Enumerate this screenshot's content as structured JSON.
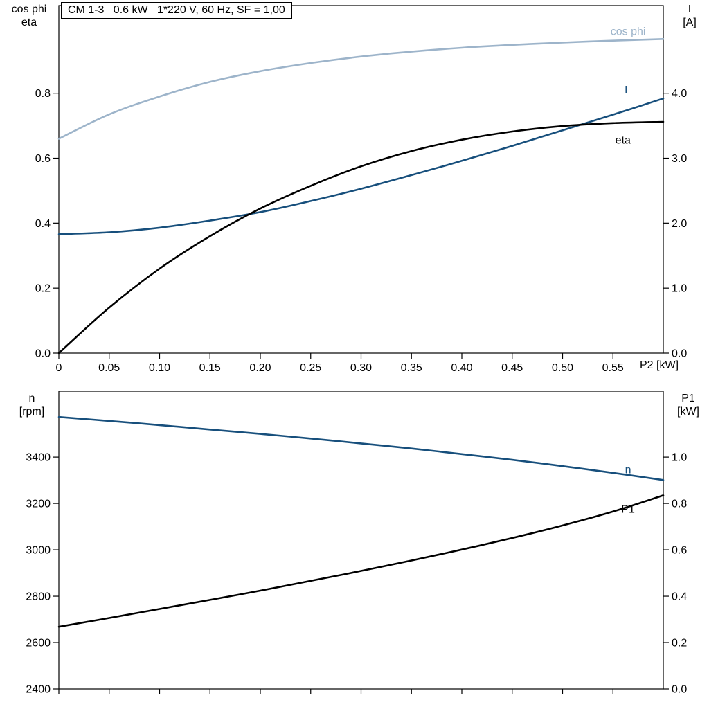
{
  "page": {
    "background": "#ffffff"
  },
  "header": {
    "title": "CM 1-3   0.6 kW   1*220 V, 60 Hz, SF = 1,00"
  },
  "chart_data": [
    {
      "type": "line",
      "title": "CM 1-3   0.6 kW   1*220 V, 60 Hz, SF = 1,00",
      "x_label": "P2 [kW]",
      "x_range": [
        0,
        0.6
      ],
      "x": [
        0,
        0.05,
        0.1,
        0.15,
        0.2,
        0.25,
        0.3,
        0.35,
        0.4,
        0.45,
        0.5,
        0.55,
        0.6
      ],
      "x_ticks": {
        "values": [
          0,
          0.05,
          0.1,
          0.15,
          0.2,
          0.25,
          0.3,
          0.35,
          0.4,
          0.45,
          0.5,
          0.55
        ],
        "labels": [
          "0",
          "0.05",
          "0.10",
          "0.15",
          "0.20",
          "0.25",
          "0.30",
          "0.35",
          "0.40",
          "0.45",
          "0.50",
          "0.55"
        ]
      },
      "left_axis": {
        "label_lines": [
          "cos phi",
          "eta"
        ],
        "range": [
          0,
          1.07
        ],
        "ticks": {
          "values": [
            0,
            0.2,
            0.4,
            0.6,
            0.8
          ],
          "labels": [
            "0.0",
            "0.2",
            "0.4",
            "0.6",
            "0.8"
          ]
        }
      },
      "right_axis": {
        "label_lines": [
          "I",
          "[A]"
        ],
        "range": [
          0,
          5.35
        ],
        "ticks": {
          "values": [
            0,
            1,
            2,
            3,
            4
          ],
          "labels": [
            "0.0",
            "1.0",
            "2.0",
            "3.0",
            "4.0"
          ]
        }
      },
      "series": [
        {
          "name": "cos phi",
          "axis": "left",
          "color": "#9db4ca",
          "label_at": [
            0.565,
            0.99
          ],
          "values": [
            0.66,
            0.735,
            0.79,
            0.835,
            0.868,
            0.893,
            0.913,
            0.928,
            0.94,
            0.949,
            0.956,
            0.962,
            0.967
          ]
        },
        {
          "name": "I",
          "axis": "right",
          "color": "#174f7c",
          "label_at": [
            0.563,
            4.05
          ],
          "values": [
            1.83,
            1.86,
            1.93,
            2.04,
            2.17,
            2.34,
            2.53,
            2.74,
            2.96,
            3.19,
            3.43,
            3.67,
            3.92
          ]
        },
        {
          "name": "eta",
          "axis": "left",
          "color": "#000000",
          "label_at": [
            0.56,
            0.655
          ],
          "values": [
            0,
            0.14,
            0.26,
            0.36,
            0.445,
            0.515,
            0.575,
            0.622,
            0.657,
            0.682,
            0.699,
            0.708,
            0.712
          ]
        }
      ]
    },
    {
      "type": "line",
      "title": "",
      "x_label": "",
      "x_range": [
        0,
        0.6
      ],
      "x": [
        0,
        0.05,
        0.1,
        0.15,
        0.2,
        0.25,
        0.3,
        0.35,
        0.4,
        0.45,
        0.5,
        0.55,
        0.6
      ],
      "x_ticks": {
        "values": [
          0,
          0.05,
          0.1,
          0.15,
          0.2,
          0.25,
          0.3,
          0.35,
          0.4,
          0.45,
          0.5,
          0.55
        ],
        "labels": []
      },
      "left_axis": {
        "label_lines": [
          "n",
          "[rpm]"
        ],
        "range": [
          2400,
          3684
        ],
        "ticks": {
          "values": [
            2400,
            2600,
            2800,
            3000,
            3200,
            3400
          ],
          "labels": [
            "2400",
            "2600",
            "2800",
            "3000",
            "3200",
            "3400"
          ]
        }
      },
      "right_axis": {
        "label_lines": [
          "P1",
          "[kW]"
        ],
        "range": [
          0,
          1.284
        ],
        "ticks": {
          "values": [
            0,
            0.2,
            0.4,
            0.6,
            0.8,
            1.0
          ],
          "labels": [
            "0.0",
            "0.2",
            "0.4",
            "0.6",
            "0.8",
            "1.0"
          ]
        }
      },
      "series": [
        {
          "name": "n",
          "axis": "left",
          "color": "#174f7c",
          "label_at": [
            0.565,
            3345
          ],
          "values": [
            3573,
            3556,
            3538,
            3519,
            3500,
            3480,
            3459,
            3437,
            3413,
            3388,
            3361,
            3332,
            3301
          ]
        },
        {
          "name": "P1",
          "axis": "right",
          "color": "#000000",
          "label_at": [
            0.565,
            0.775
          ],
          "values": [
            0.268,
            0.306,
            0.345,
            0.384,
            0.424,
            0.466,
            0.509,
            0.554,
            0.601,
            0.651,
            0.705,
            0.765,
            0.835
          ]
        }
      ]
    }
  ]
}
